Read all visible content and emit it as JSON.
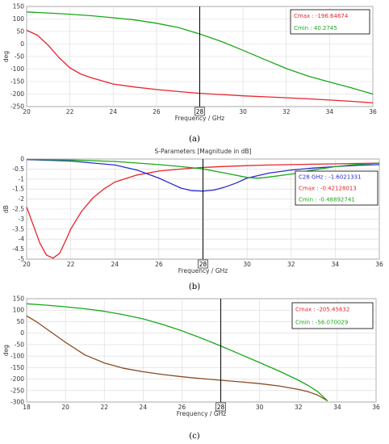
{
  "colors": {
    "red": "#e8232b",
    "green": "#18a818",
    "blue": "#2a2ad0",
    "brown": "#8a4a20",
    "grid": "#d9d9d9",
    "axis": "#555555",
    "marker_line": "#000000"
  },
  "chart_data": [
    {
      "type": "line",
      "panel": "(a)",
      "title": "",
      "xlabel": "Frequency / GHz",
      "ylabel": "deg",
      "xlim": [
        20,
        36
      ],
      "ylim": [
        -250,
        150
      ],
      "xticks": [
        20,
        22,
        24,
        26,
        28,
        30,
        32,
        34,
        36
      ],
      "yticks": [
        150,
        100,
        50,
        0,
        -50,
        -100,
        -150,
        -200,
        -250
      ],
      "grid": true,
      "marker_x": 28,
      "marker_label": "28",
      "legend_position": "top-right",
      "legend": [
        {
          "text": "Cmax : -196.64674",
          "color": "#e8232b"
        },
        {
          "text": "Cmin : 40.2745",
          "color": "#18a818"
        }
      ],
      "series": [
        {
          "color": "#e8232b",
          "x": [
            20,
            20.5,
            21,
            21.5,
            22,
            22.5,
            23,
            24,
            25,
            26,
            27,
            28,
            29,
            30,
            31,
            32,
            33,
            34,
            35,
            36
          ],
          "y": [
            55,
            35,
            -5,
            -55,
            -95,
            -120,
            -135,
            -160,
            -172,
            -182,
            -190,
            -197,
            -202,
            -207,
            -211,
            -215,
            -219,
            -224,
            -229,
            -235
          ]
        },
        {
          "color": "#18a818",
          "x": [
            20,
            21,
            22,
            23,
            24,
            25,
            26,
            27,
            28,
            29,
            30,
            31,
            32,
            33,
            34,
            35,
            36
          ],
          "y": [
            128,
            124,
            119,
            113,
            105,
            96,
            83,
            66,
            40,
            10,
            -25,
            -62,
            -98,
            -128,
            -152,
            -175,
            -200
          ]
        }
      ]
    },
    {
      "type": "line",
      "panel": "(b)",
      "title": "S-Parameters [Magnitude in dB]",
      "xlabel": "Frequency / GHz",
      "ylabel": "dB",
      "xlim": [
        20,
        36
      ],
      "ylim": [
        -5,
        0
      ],
      "xticks": [
        20,
        22,
        24,
        26,
        28,
        30,
        32,
        34,
        36
      ],
      "yticks": [
        0,
        -0.5,
        -1,
        -1.5,
        -2,
        -2.5,
        -3,
        -3.5,
        -4,
        -4.5,
        -5
      ],
      "grid": true,
      "marker_x": 28,
      "marker_label": "28",
      "legend_position": "right",
      "legend": [
        {
          "text": "C28 GHz : -1.6021331",
          "color": "#2a2ad0"
        },
        {
          "text": "Cmax : -0.42128013",
          "color": "#e8232b"
        },
        {
          "text": "Cmin : -0.48892741",
          "color": "#18a818"
        }
      ],
      "series": [
        {
          "color": "#e8232b",
          "x": [
            20,
            20.3,
            20.6,
            20.9,
            21.2,
            21.5,
            21.8,
            22,
            22.5,
            23,
            23.5,
            24,
            25,
            26,
            27,
            28,
            29,
            30,
            31,
            32,
            33,
            34,
            35,
            36
          ],
          "y": [
            -2.4,
            -3.3,
            -4.2,
            -4.8,
            -4.95,
            -4.7,
            -4.0,
            -3.5,
            -2.6,
            -1.95,
            -1.5,
            -1.15,
            -0.8,
            -0.6,
            -0.5,
            -0.42,
            -0.37,
            -0.33,
            -0.3,
            -0.28,
            -0.26,
            -0.24,
            -0.22,
            -0.2
          ]
        },
        {
          "color": "#2a2ad0",
          "x": [
            20,
            22,
            24,
            25,
            26,
            26.5,
            27,
            27.5,
            28,
            28.5,
            29,
            29.5,
            30,
            31,
            32,
            33,
            34,
            35,
            36
          ],
          "y": [
            -0.03,
            -0.1,
            -0.3,
            -0.55,
            -0.95,
            -1.2,
            -1.45,
            -1.58,
            -1.6,
            -1.55,
            -1.4,
            -1.2,
            -0.95,
            -0.7,
            -0.55,
            -0.45,
            -0.38,
            -0.32,
            -0.28
          ]
        },
        {
          "color": "#18a818",
          "x": [
            20,
            22,
            24,
            26,
            27,
            28,
            29,
            30,
            30.5,
            31,
            32,
            33,
            34,
            35,
            36
          ],
          "y": [
            -0.02,
            -0.05,
            -0.12,
            -0.28,
            -0.38,
            -0.49,
            -0.7,
            -0.92,
            -0.95,
            -0.9,
            -0.75,
            -0.55,
            -0.38,
            -0.27,
            -0.2
          ]
        }
      ]
    },
    {
      "type": "line",
      "panel": "(c)",
      "title": "",
      "xlabel": "Frequency / GHz",
      "ylabel": "deg",
      "xlim": [
        18,
        36
      ],
      "ylim": [
        -300,
        150
      ],
      "xticks": [
        18,
        20,
        22,
        24,
        26,
        28,
        30,
        32,
        34,
        36
      ],
      "yticks": [
        150,
        100,
        50,
        0,
        -50,
        -100,
        -150,
        -200,
        -250,
        -300
      ],
      "grid": true,
      "marker_x": 28,
      "marker_label": "28",
      "legend_position": "top-right",
      "legend": [
        {
          "text": "Cmax : -205.45632",
          "color": "#e8232b"
        },
        {
          "text": "Cmin : -56.070029",
          "color": "#18a818"
        }
      ],
      "series": [
        {
          "color": "#8a4a20",
          "x": [
            18,
            18.5,
            19,
            19.5,
            20,
            21,
            22,
            23,
            24,
            25,
            26,
            27,
            28,
            29,
            30,
            31,
            32,
            32.5,
            33,
            33.5
          ],
          "y": [
            75,
            50,
            20,
            -10,
            -40,
            -95,
            -130,
            -153,
            -168,
            -180,
            -190,
            -198,
            -205,
            -212,
            -220,
            -230,
            -245,
            -255,
            -270,
            -295
          ]
        },
        {
          "color": "#18a818",
          "x": [
            18,
            19,
            20,
            21,
            22,
            23,
            24,
            25,
            26,
            27,
            28,
            29,
            30,
            31,
            32,
            32.5,
            33,
            33.5
          ],
          "y": [
            128,
            122,
            115,
            106,
            95,
            80,
            62,
            38,
            10,
            -22,
            -56,
            -92,
            -128,
            -165,
            -205,
            -228,
            -255,
            -295
          ]
        }
      ]
    }
  ],
  "captions": [
    "(a)",
    "(b)",
    "(c)"
  ]
}
